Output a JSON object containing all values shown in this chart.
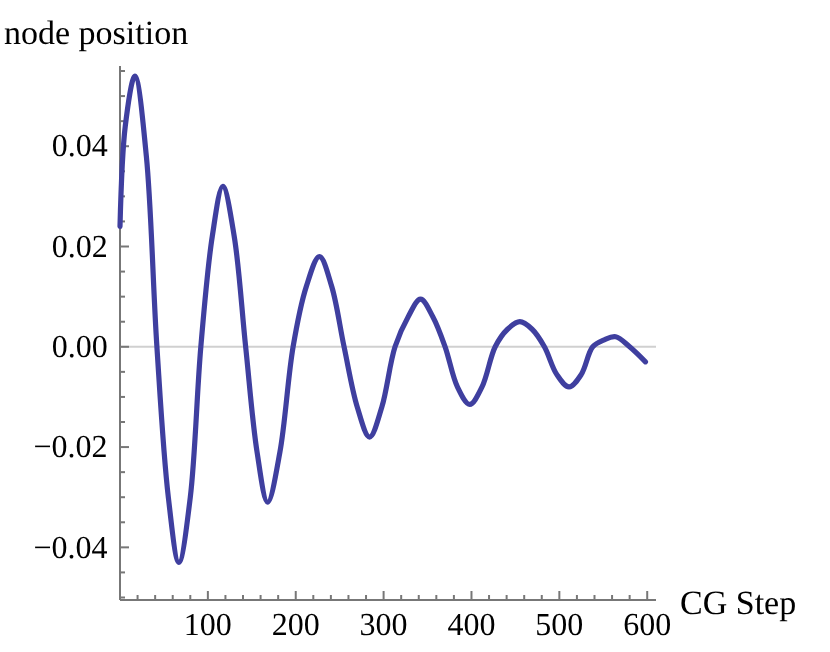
{
  "chart_data": {
    "type": "line",
    "xlabel": "CG Step",
    "ylabel": "node position",
    "xlim": [
      0,
      610
    ],
    "ylim": [
      -0.0505,
      0.056
    ],
    "xticks": [
      {
        "value": 20,
        "label": null
      },
      {
        "value": 40,
        "label": null
      },
      {
        "value": 60,
        "label": null
      },
      {
        "value": 80,
        "label": null
      },
      100,
      {
        "value": 120,
        "label": null
      },
      {
        "value": 140,
        "label": null
      },
      {
        "value": 160,
        "label": null
      },
      {
        "value": 180,
        "label": null
      },
      200,
      {
        "value": 220,
        "label": null
      },
      {
        "value": 240,
        "label": null
      },
      {
        "value": 260,
        "label": null
      },
      {
        "value": 280,
        "label": null
      },
      300,
      {
        "value": 320,
        "label": null
      },
      {
        "value": 340,
        "label": null
      },
      {
        "value": 360,
        "label": null
      },
      {
        "value": 380,
        "label": null
      },
      400,
      {
        "value": 420,
        "label": null
      },
      {
        "value": 440,
        "label": null
      },
      {
        "value": 460,
        "label": null
      },
      {
        "value": 480,
        "label": null
      },
      500,
      {
        "value": 520,
        "label": null
      },
      {
        "value": 540,
        "label": null
      },
      {
        "value": 560,
        "label": null
      },
      {
        "value": 580,
        "label": null
      },
      600
    ],
    "yticks": [
      {
        "value": -0.05,
        "label": null
      },
      {
        "value": -0.045,
        "label": null
      },
      {
        "value": -0.04,
        "label": "−0.04"
      },
      {
        "value": -0.035,
        "label": null
      },
      {
        "value": -0.03,
        "label": null
      },
      {
        "value": -0.025,
        "label": null
      },
      {
        "value": -0.02,
        "label": "−0.02"
      },
      {
        "value": -0.015,
        "label": null
      },
      {
        "value": -0.01,
        "label": null
      },
      {
        "value": -0.005,
        "label": null
      },
      {
        "value": 0,
        "label": "0.00"
      },
      {
        "value": 0.005,
        "label": null
      },
      {
        "value": 0.01,
        "label": null
      },
      {
        "value": 0.015,
        "label": null
      },
      {
        "value": 0.02,
        "label": "0.02"
      },
      {
        "value": 0.025,
        "label": null
      },
      {
        "value": 0.03,
        "label": null
      },
      {
        "value": 0.035,
        "label": null
      },
      {
        "value": 0.04,
        "label": "0.04"
      },
      {
        "value": 0.045,
        "label": null
      },
      {
        "value": 0.05,
        "label": null
      },
      {
        "value": 0.055,
        "label": null
      }
    ],
    "ref_lines": [
      {
        "axis": "y",
        "value": 0,
        "color": "#d0d0d0"
      }
    ],
    "marker": "none",
    "line_style": "solid",
    "x": [
      0,
      6,
      17,
      30,
      42,
      55,
      67,
      80,
      92,
      105,
      117,
      130,
      143,
      156,
      168,
      182,
      197,
      212,
      227,
      241,
      255,
      270,
      284,
      298,
      313,
      328,
      342,
      356,
      370,
      384,
      398,
      412,
      427,
      441,
      455,
      469,
      483,
      497,
      511,
      525,
      538,
      551,
      564,
      580,
      598
    ],
    "series": [
      {
        "color": "#3f3f9f",
        "values": [
          0.024,
          0.044,
          0.054,
          0.038,
          0,
          -0.03,
          -0.043,
          -0.03,
          0,
          0.022,
          0.032,
          0.022,
          0,
          -0.021,
          -0.031,
          -0.021,
          0,
          0.012,
          0.018,
          0.012,
          0,
          -0.012,
          -0.018,
          -0.012,
          0,
          0.006,
          0.0095,
          0.006,
          0,
          -0.008,
          -0.0115,
          -0.008,
          0,
          0.0035,
          0.005,
          0.0035,
          0,
          -0.0055,
          -0.008,
          -0.0055,
          0,
          0.0014,
          0.002,
          0,
          -0.003
        ]
      }
    ]
  }
}
